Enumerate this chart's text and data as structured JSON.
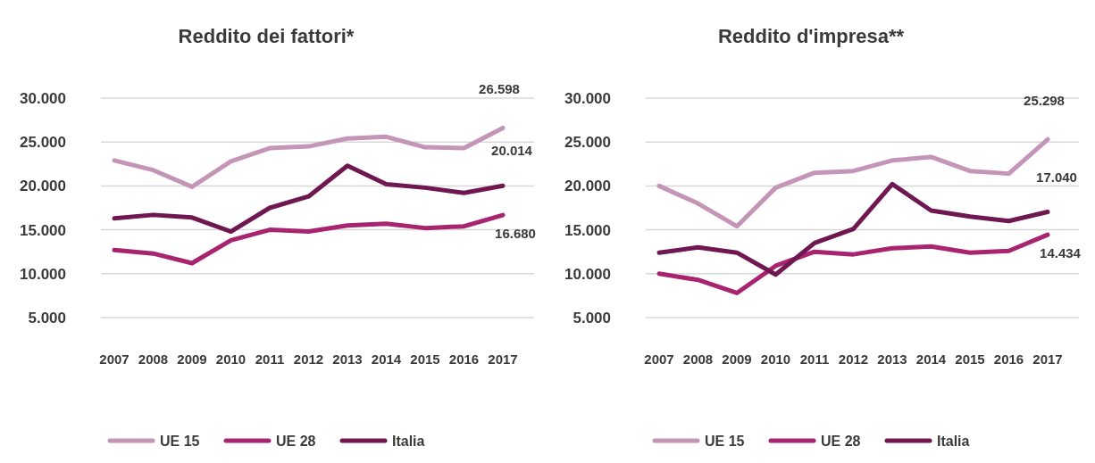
{
  "chart_data": [
    {
      "type": "line",
      "title": "Reddito dei fattori*",
      "categories": [
        "2007",
        "2008",
        "2009",
        "2010",
        "2011",
        "2012",
        "2013",
        "2014",
        "2015",
        "2016",
        "2017"
      ],
      "series": [
        {
          "name": "UE 15",
          "color": "#c595b8",
          "values": [
            22900,
            21800,
            19900,
            22800,
            24300,
            24500,
            25400,
            25600,
            24400,
            24300,
            26598
          ],
          "value_labels": [
            null,
            null,
            null,
            null,
            null,
            null,
            null,
            null,
            null,
            null,
            "26.598"
          ]
        },
        {
          "name": "UE 28",
          "color": "#a8246f",
          "values": [
            12700,
            12300,
            11200,
            13800,
            15000,
            14800,
            15500,
            15700,
            15200,
            15400,
            16680
          ],
          "value_labels": [
            null,
            null,
            null,
            null,
            null,
            null,
            null,
            null,
            null,
            null,
            "16.680"
          ]
        },
        {
          "name": "Italia",
          "color": "#6e1750",
          "values": [
            16300,
            16700,
            16400,
            14800,
            17500,
            18800,
            22300,
            20200,
            19800,
            19200,
            20014
          ],
          "value_labels": [
            null,
            null,
            null,
            null,
            null,
            null,
            null,
            null,
            null,
            null,
            "20.014"
          ]
        }
      ],
      "ylim": [
        5000,
        30000
      ],
      "yticks": [
        {
          "value": 5000,
          "label": "5.000"
        },
        {
          "value": 10000,
          "label": "10.000"
        },
        {
          "value": 15000,
          "label": "15.000"
        },
        {
          "value": 20000,
          "label": "20.000"
        },
        {
          "value": 25000,
          "label": "25.000"
        },
        {
          "value": 30000,
          "label": "30.000"
        }
      ],
      "grid": "y",
      "legend": "bottom",
      "marker": "none",
      "line_style": "solid"
    },
    {
      "type": "line",
      "title": "Reddito d'impresa**",
      "categories": [
        "2007",
        "2008",
        "2009",
        "2010",
        "2011",
        "2012",
        "2013",
        "2014",
        "2015",
        "2016",
        "2017"
      ],
      "series": [
        {
          "name": "UE 15",
          "color": "#c595b8",
          "values": [
            20000,
            18000,
            15400,
            19800,
            21500,
            21700,
            22900,
            23300,
            21700,
            21400,
            25298
          ],
          "value_labels": [
            null,
            null,
            null,
            null,
            null,
            null,
            null,
            null,
            null,
            null,
            "25.298"
          ]
        },
        {
          "name": "UE 28",
          "color": "#a8246f",
          "values": [
            10000,
            9300,
            7800,
            10900,
            12500,
            12200,
            12900,
            13100,
            12400,
            12600,
            14434
          ],
          "value_labels": [
            null,
            null,
            null,
            null,
            null,
            null,
            null,
            null,
            null,
            null,
            "14.434"
          ]
        },
        {
          "name": "Italia",
          "color": "#6e1750",
          "values": [
            12400,
            13000,
            12400,
            9900,
            13500,
            15100,
            20200,
            17200,
            16500,
            16000,
            17040
          ],
          "value_labels": [
            null,
            null,
            null,
            null,
            null,
            null,
            null,
            null,
            null,
            null,
            "17.040"
          ]
        }
      ],
      "ylim": [
        5000,
        30000
      ],
      "yticks": [
        {
          "value": 5000,
          "label": "5.000"
        },
        {
          "value": 10000,
          "label": "10.000"
        },
        {
          "value": 15000,
          "label": "15.000"
        },
        {
          "value": 20000,
          "label": "20.000"
        },
        {
          "value": 25000,
          "label": "25.000"
        },
        {
          "value": 30000,
          "label": "30.000"
        }
      ],
      "grid": "y",
      "legend": "bottom",
      "marker": "none",
      "line_style": "solid"
    }
  ]
}
